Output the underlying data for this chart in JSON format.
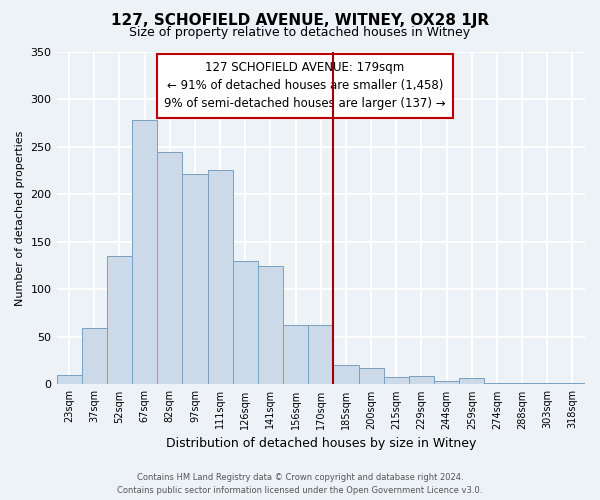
{
  "title": "127, SCHOFIELD AVENUE, WITNEY, OX28 1JR",
  "subtitle": "Size of property relative to detached houses in Witney",
  "xlabel": "Distribution of detached houses by size in Witney",
  "ylabel": "Number of detached properties",
  "bar_color": "#ccd9e8",
  "bar_edge_color": "#7aa0c0",
  "background_color": "#edf2f7",
  "grid_color": "white",
  "categories": [
    "23sqm",
    "37sqm",
    "52sqm",
    "67sqm",
    "82sqm",
    "97sqm",
    "111sqm",
    "126sqm",
    "141sqm",
    "156sqm",
    "170sqm",
    "185sqm",
    "200sqm",
    "215sqm",
    "229sqm",
    "244sqm",
    "259sqm",
    "274sqm",
    "288sqm",
    "303sqm",
    "318sqm"
  ],
  "values": [
    10,
    59,
    135,
    278,
    244,
    221,
    225,
    130,
    125,
    62,
    62,
    20,
    17,
    8,
    9,
    4,
    7,
    2,
    1,
    1,
    2
  ],
  "ylim": [
    0,
    350
  ],
  "yticks": [
    0,
    50,
    100,
    150,
    200,
    250,
    300,
    350
  ],
  "marker_label": "127 SCHOFIELD AVENUE: 179sqm",
  "annotation_line1": "← 91% of detached houses are smaller (1,458)",
  "annotation_line2": "9% of semi-detached houses are larger (137) →",
  "marker_color": "#a00000",
  "annotation_box_edge_color": "#c00000",
  "footer_line1": "Contains HM Land Registry data © Crown copyright and database right 2024.",
  "footer_line2": "Contains public sector information licensed under the Open Government Licence v3.0."
}
